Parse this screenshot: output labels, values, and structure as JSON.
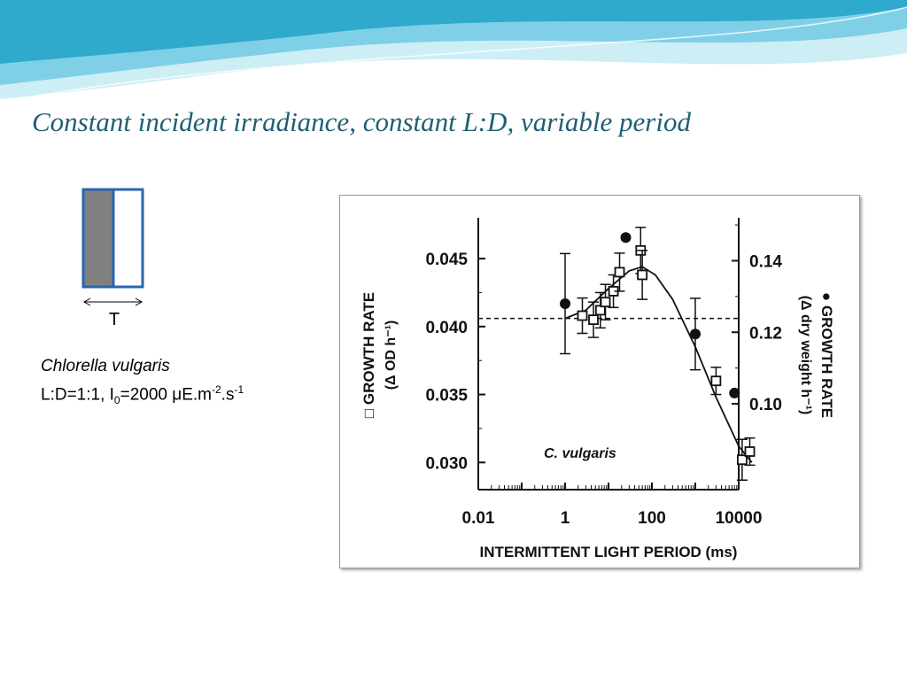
{
  "slide": {
    "title": "Constant incident irradiance, constant L:D, variable period",
    "diagram_label": "T",
    "species": "Chlorella vulgaris",
    "conditions": {
      "prefix": "L:D=1:1, I",
      "sub": "0",
      "mid": "=2000 ",
      "mu": "μ",
      "unit": "E.m",
      "sup1": "-2",
      "unit2": ".s",
      "sup2": "-1"
    },
    "colors": {
      "title": "#1f5f73",
      "diagram_border": "#2a64b0",
      "diagram_dark": "#808080",
      "wave_light": "#cdeef5",
      "wave_mid": "#7fd0e6",
      "wave_dark": "#2fa9cc"
    }
  },
  "chart_data": {
    "type": "scatter",
    "x_scale": "log",
    "xlim": [
      0.01,
      10000
    ],
    "x_ticks": [
      0.01,
      1,
      100,
      10000
    ],
    "x_tick_labels": [
      "0.01",
      "1",
      "100",
      "10000"
    ],
    "xlabel": "INTERMITTENT LIGHT PERIOD (ms)",
    "ylabel_left": "GROWTH RATE",
    "ylabel_left_unit": "(Δ OD h⁻¹)",
    "ylabel_left_marker": "□",
    "ylim_left": [
      0.028,
      0.048
    ],
    "y_ticks_left": [
      0.03,
      0.035,
      0.04,
      0.045
    ],
    "y_tick_labels_left": [
      "0.030",
      "0.035",
      "0.040",
      "0.045"
    ],
    "ylabel_right": "GROWTH RATE",
    "ylabel_right_unit": "(Δ dry weight h⁻¹)",
    "ylabel_right_marker": "●",
    "ylim_right": [
      0.076,
      0.152
    ],
    "y_ticks_right": [
      0.1,
      0.12,
      0.14
    ],
    "y_tick_labels_right": [
      "0.10",
      "0.12",
      "0.14"
    ],
    "annotation": "C. vulgaris",
    "reference_line_left_y": 0.0406,
    "series": [
      {
        "marker": "open-square",
        "axis": "left",
        "points": [
          {
            "x": 2.5,
            "y": 0.0408,
            "err": 0.0013
          },
          {
            "x": 4.5,
            "y": 0.0405,
            "err": 0.0013
          },
          {
            "x": 6.5,
            "y": 0.0412,
            "err": 0.0013
          },
          {
            "x": 8.5,
            "y": 0.0418,
            "err": 0.0013
          },
          {
            "x": 13,
            "y": 0.0426,
            "err": 0.0012
          },
          {
            "x": 18,
            "y": 0.044,
            "err": 0.0014
          },
          {
            "x": 55,
            "y": 0.0456,
            "err": 0.0017
          },
          {
            "x": 60,
            "y": 0.0438,
            "err": 0.0018
          },
          {
            "x": 3000,
            "y": 0.036,
            "err": 0.001
          },
          {
            "x": 12000,
            "y": 0.0302,
            "err": 0.0015
          },
          {
            "x": 18000,
            "y": 0.0308,
            "err": 0.001
          }
        ]
      },
      {
        "marker": "filled-circle",
        "axis": "right",
        "points": [
          {
            "x": 1,
            "y": 0.128,
            "err": 0.014
          },
          {
            "x": 25,
            "y": 0.1465,
            "err": 0.0
          },
          {
            "x": 1000,
            "y": 0.1195,
            "err": 0.01
          },
          {
            "x": 8000,
            "y": 0.103,
            "err": 0.0
          }
        ]
      }
    ],
    "fit_curve_left": [
      {
        "x": 1,
        "y": 0.0406
      },
      {
        "x": 3,
        "y": 0.0412
      },
      {
        "x": 10,
        "y": 0.0428
      },
      {
        "x": 30,
        "y": 0.0441
      },
      {
        "x": 60,
        "y": 0.0444
      },
      {
        "x": 120,
        "y": 0.0438
      },
      {
        "x": 300,
        "y": 0.042
      },
      {
        "x": 1000,
        "y": 0.0385
      },
      {
        "x": 3000,
        "y": 0.0348
      },
      {
        "x": 10000,
        "y": 0.0312
      },
      {
        "x": 20000,
        "y": 0.03
      }
    ]
  }
}
